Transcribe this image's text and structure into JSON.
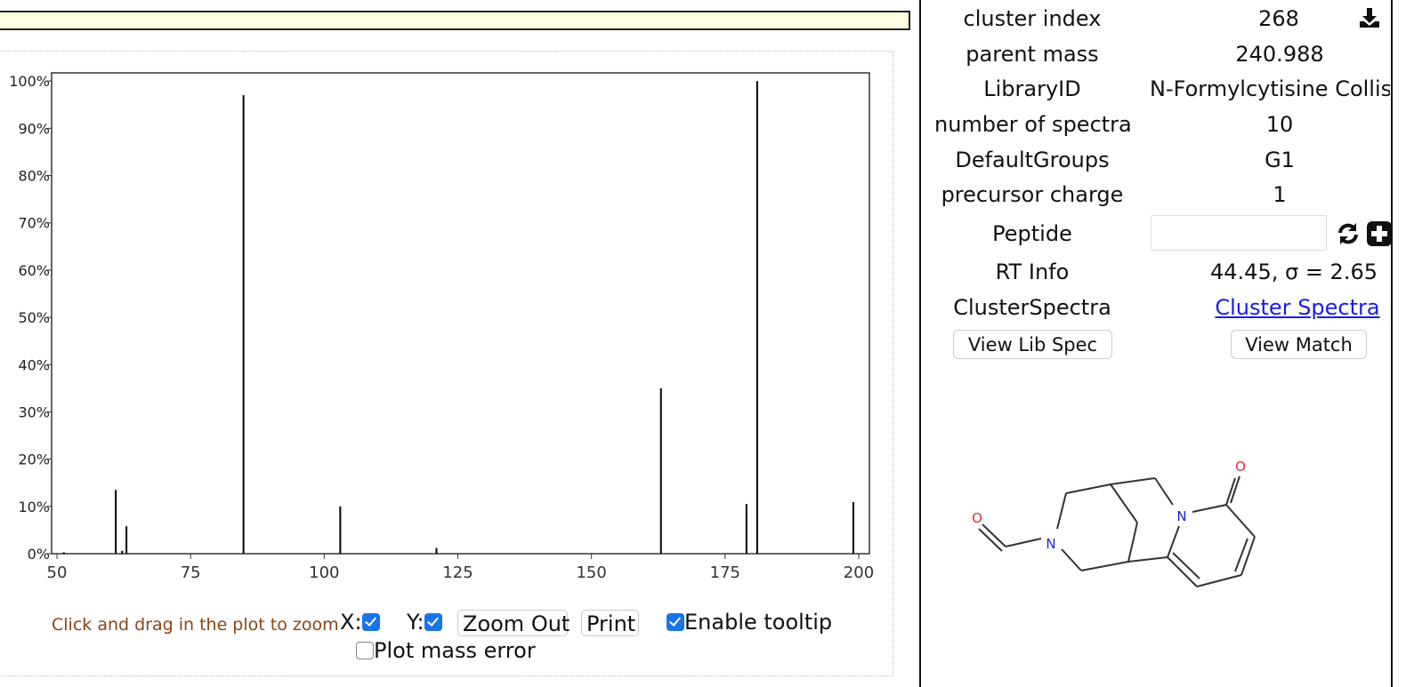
{
  "chart_data": {
    "type": "bar",
    "xlim": [
      49,
      202
    ],
    "ylim": [
      0,
      100
    ],
    "x_ticks": [
      "50",
      "75",
      "100",
      "125",
      "150",
      "175",
      "200"
    ],
    "y_ticks": [
      "0%",
      "10%",
      "20%",
      "30%",
      "40%",
      "50%",
      "60%",
      "70%",
      "80%",
      "90%",
      "100%"
    ],
    "peaks": [
      {
        "mz": 51.3,
        "intensity": 0.3
      },
      {
        "mz": 61.0,
        "intensity": 13.5
      },
      {
        "mz": 62.2,
        "intensity": 0.6
      },
      {
        "mz": 63.0,
        "intensity": 5.8
      },
      {
        "mz": 84.9,
        "intensity": 97.0
      },
      {
        "mz": 103.0,
        "intensity": 10.0
      },
      {
        "mz": 121.0,
        "intensity": 1.2
      },
      {
        "mz": 163.0,
        "intensity": 35.0
      },
      {
        "mz": 179.0,
        "intensity": 10.5
      },
      {
        "mz": 181.0,
        "intensity": 100.0
      },
      {
        "mz": 199.0,
        "intensity": 10.9
      }
    ]
  },
  "controls": {
    "zoom_hint": "Click and drag in the plot to zoom",
    "x_label": "X:",
    "x_checked": true,
    "y_label": "Y:",
    "y_checked": true,
    "zoom_out": "Zoom Out",
    "print": "Print",
    "tooltip_label": "Enable tooltip",
    "tooltip_checked": true,
    "mass_error_label": "Plot mass error",
    "mass_error_checked": false
  },
  "info": {
    "cluster_index_label": "cluster index",
    "cluster_index": "268",
    "parent_mass_label": "parent mass",
    "parent_mass": "240.988",
    "library_id_label": "LibraryID",
    "library_id": "N-Formylcytisine Collision",
    "num_spectra_label": "number of spectra",
    "num_spectra": "10",
    "default_groups_label": "DefaultGroups",
    "default_groups": "G1",
    "precursor_charge_label": "precursor charge",
    "precursor_charge": "1",
    "peptide_label": "Peptide",
    "peptide_value": "",
    "rt_info_label": "RT Info",
    "rt_info": "44.45, σ = 2.65",
    "cluster_spectra_label": "ClusterSpectra",
    "cluster_spectra_link": "Cluster Spectra",
    "view_lib_spec": "View Lib Spec",
    "view_match": "View Match"
  },
  "icons": {
    "download": "download-icon",
    "refresh": "refresh-icon",
    "add": "plus-square-icon"
  },
  "molecule": {
    "atom_labels": [
      "O",
      "N",
      "N",
      "O"
    ]
  },
  "colors": {
    "link": "#1a1aee",
    "checkbox": "#1a73e8",
    "zoom_hint": "#8b4513",
    "oxygen": "#e03030",
    "nitrogen": "#2020dd"
  }
}
